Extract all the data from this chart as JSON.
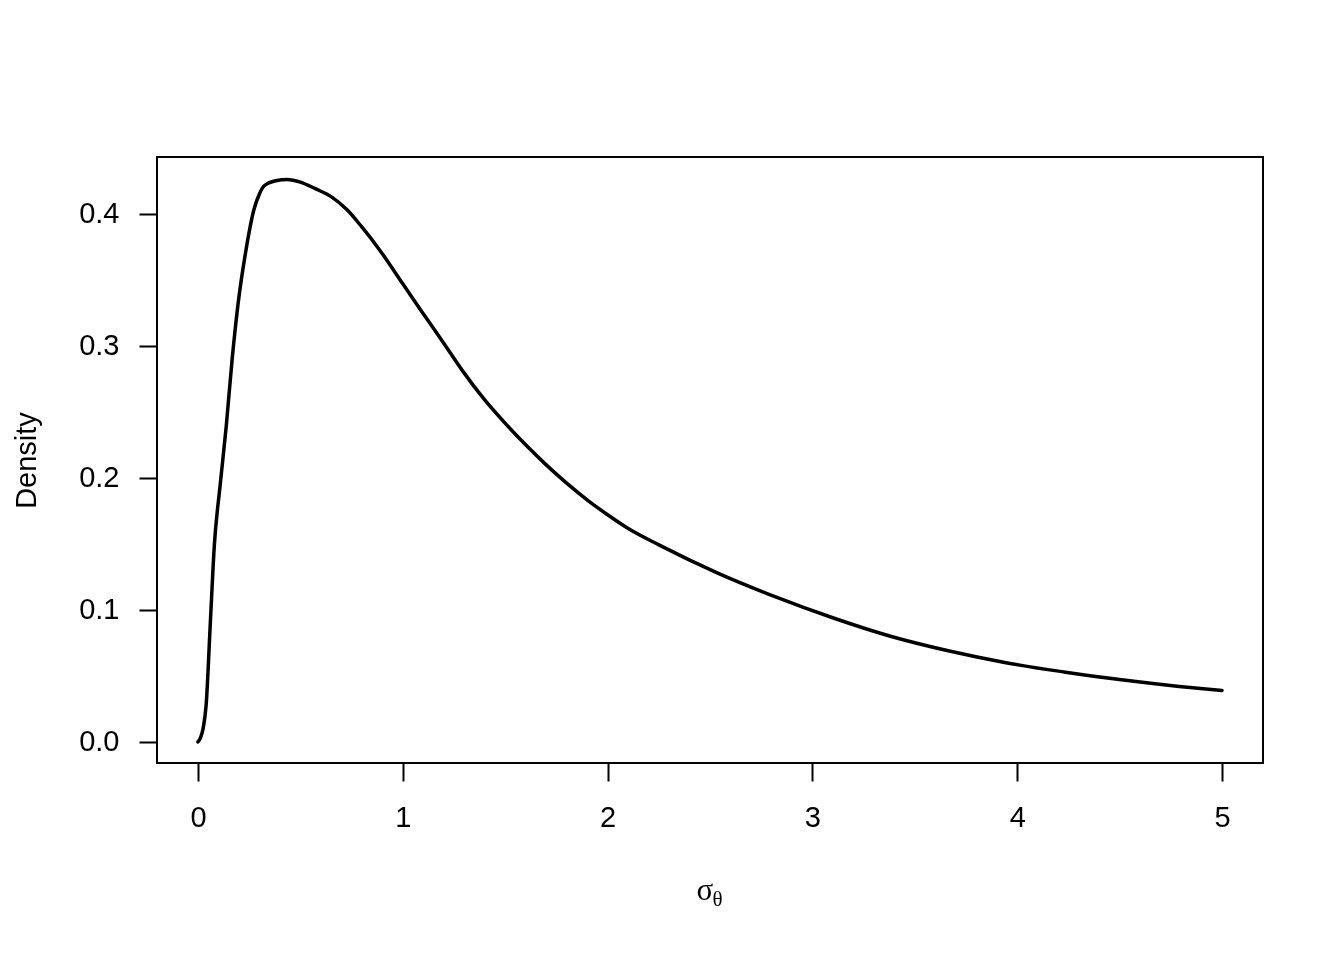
{
  "chart_data": {
    "type": "line",
    "xlabel": "σ$_{θ}$",
    "ylabel": "Density",
    "color": "#000000",
    "x": [
      0,
      0.012,
      0.025,
      0.04,
      0.06,
      0.08,
      0.108,
      0.138,
      0.167,
      0.196,
      0.235,
      0.273,
      0.3,
      0.322,
      0.38,
      0.437,
      0.5,
      0.573,
      0.65,
      0.728,
      0.8,
      0.885,
      1.0,
      1.088,
      1.2,
      1.292,
      1.4,
      1.496,
      1.6,
      1.699,
      1.8,
      1.903,
      2.0,
      2.107,
      2.253,
      2.535,
      2.817,
      3.099,
      3.381,
      3.663,
      3.945,
      4.227,
      4.509,
      4.791,
      5.0
    ],
    "values": [
      0.0,
      0.003,
      0.01,
      0.028,
      0.089,
      0.149,
      0.194,
      0.239,
      0.29,
      0.332,
      0.373,
      0.403,
      0.415,
      0.421,
      0.425,
      0.426,
      0.424,
      0.419,
      0.413,
      0.403,
      0.39,
      0.373,
      0.347,
      0.327,
      0.302,
      0.281,
      0.259,
      0.242,
      0.225,
      0.21,
      0.196,
      0.183,
      0.172,
      0.161,
      0.149,
      0.128,
      0.11,
      0.094,
      0.08,
      0.069,
      0.06,
      0.053,
      0.047,
      0.042,
      0.039
    ],
    "xlim": [
      -0.2,
      5.2
    ],
    "ylim": [
      -0.016,
      0.443
    ],
    "xticks": [
      0,
      1,
      2,
      3,
      4,
      5
    ],
    "yticks": [
      {
        "value": 0,
        "label": "0.0"
      },
      0.1,
      0.2,
      0.3,
      0.4
    ]
  }
}
